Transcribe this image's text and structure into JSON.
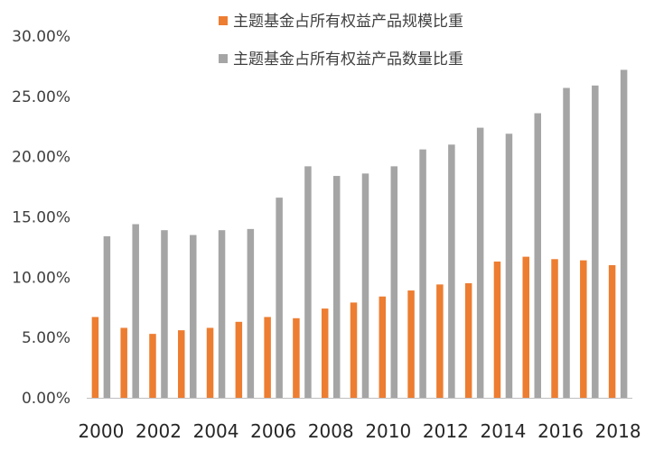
{
  "chart_data": {
    "type": "bar",
    "title": "",
    "xlabel": "",
    "ylabel": "",
    "ylim": [
      0,
      30
    ],
    "y_ticks": [
      0,
      5,
      10,
      15,
      20,
      25,
      30
    ],
    "y_tick_labels": [
      "0.00%",
      "5.00%",
      "10.00%",
      "15.00%",
      "20.00%",
      "25.00%",
      "30.00%"
    ],
    "grid": false,
    "legend_position": "top",
    "categories": [
      "2000",
      "2001",
      "2002",
      "2003",
      "2004",
      "2005",
      "2006",
      "2007",
      "2008",
      "2009",
      "2010",
      "2011",
      "2012",
      "2013",
      "2014",
      "2015",
      "2016",
      "2017",
      "2018"
    ],
    "x_tick_labels": [
      "2000",
      "2002",
      "2004",
      "2006",
      "2008",
      "2010",
      "2012",
      "2014",
      "2016",
      "2018"
    ],
    "series": [
      {
        "name": "主题基金占所有权益产品规模比重",
        "color": "#ED7D31",
        "values": [
          6.7,
          5.8,
          5.3,
          5.6,
          5.8,
          6.3,
          6.7,
          6.6,
          7.4,
          7.9,
          8.4,
          8.9,
          9.4,
          9.5,
          11.3,
          11.7,
          11.5,
          11.4,
          11.0
        ]
      },
      {
        "name": "主题基金占所有权益产品数量比重",
        "color": "#A5A5A5",
        "values": [
          13.4,
          14.4,
          13.9,
          13.5,
          13.9,
          14.0,
          16.6,
          19.2,
          18.4,
          18.6,
          19.2,
          20.6,
          21.0,
          22.4,
          21.9,
          23.6,
          25.7,
          25.9,
          27.2
        ]
      }
    ]
  }
}
